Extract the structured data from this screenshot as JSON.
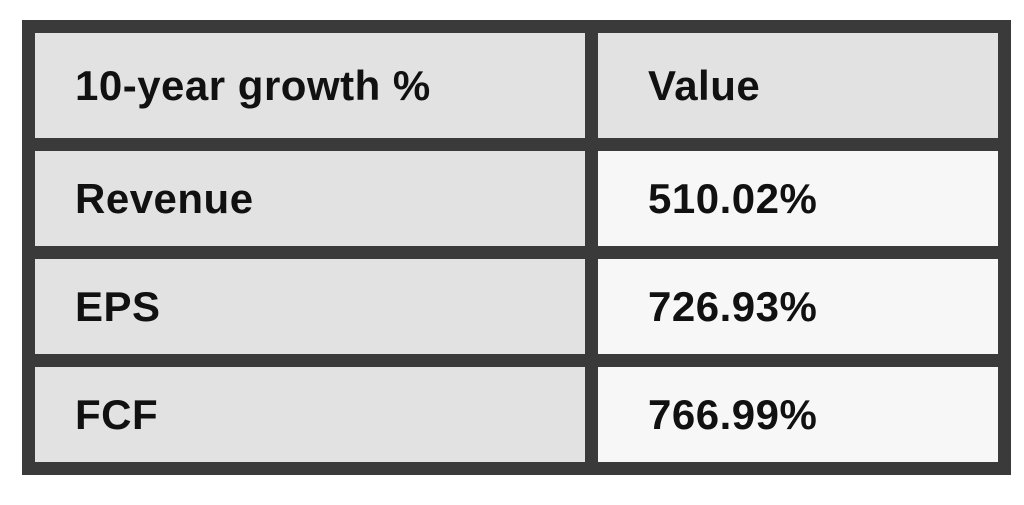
{
  "chart_data": {
    "type": "table",
    "title": "10-year growth %",
    "columns": [
      "10-year growth %",
      "Value"
    ],
    "rows": [
      [
        "Revenue",
        "510.02%"
      ],
      [
        "EPS",
        "726.93%"
      ],
      [
        "FCF",
        "766.99%"
      ]
    ],
    "values_numeric_percent": {
      "Revenue": 510.02,
      "EPS": 726.93,
      "FCF": 766.99
    },
    "legend_position": "none",
    "grid": "heavy-borders"
  },
  "colors": {
    "border": "#3a3a3a",
    "header_bg": "#e2e2e2",
    "label_bg": "#e2e2e2",
    "value_bg": "#f7f7f7",
    "text": "#111111",
    "page_bg": "#ffffff"
  }
}
